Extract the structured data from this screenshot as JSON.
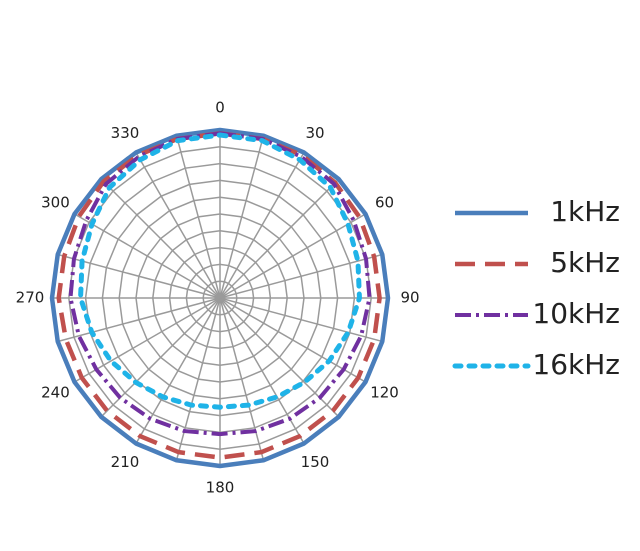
{
  "chart_data": {
    "type": "polar-line",
    "angle_ticks": [
      "0",
      "30",
      "60",
      "90",
      "120",
      "150",
      "180",
      "210",
      "240",
      "270",
      "300",
      "330"
    ],
    "angles_deg": [
      0,
      15,
      30,
      45,
      60,
      75,
      90,
      105,
      120,
      135,
      150,
      165,
      180,
      195,
      210,
      225,
      240,
      255,
      270,
      285,
      300,
      315,
      330,
      345
    ],
    "r_max": 1.0,
    "rings": 10,
    "spokes": 24,
    "grid": true,
    "legend_position": "right",
    "series": [
      {
        "name": "1kHz",
        "color": "#4a7ebb",
        "style": "solid",
        "values": [
          1.0,
          1.0,
          1.0,
          1.0,
          1.0,
          1.0,
          1.0,
          1.0,
          1.0,
          1.0,
          1.0,
          1.0,
          1.0,
          1.0,
          1.0,
          1.0,
          1.0,
          1.0,
          1.0,
          1.0,
          1.0,
          1.0,
          1.0,
          1.0
        ]
      },
      {
        "name": "5kHz",
        "color": "#c0504d",
        "style": "dashed",
        "values": [
          0.98,
          0.98,
          0.98,
          0.97,
          0.96,
          0.95,
          0.95,
          0.95,
          0.95,
          0.95,
          0.95,
          0.95,
          0.95,
          0.95,
          0.95,
          0.95,
          0.95,
          0.95,
          0.96,
          0.96,
          0.97,
          0.98,
          0.98,
          0.98
        ]
      },
      {
        "name": "10kHz",
        "color": "#7030a0",
        "style": "dashdot",
        "values": [
          0.98,
          0.98,
          0.97,
          0.96,
          0.92,
          0.9,
          0.89,
          0.87,
          0.85,
          0.84,
          0.83,
          0.82,
          0.81,
          0.82,
          0.83,
          0.84,
          0.85,
          0.87,
          0.89,
          0.9,
          0.92,
          0.96,
          0.97,
          0.98
        ]
      },
      {
        "name": "16kHz",
        "color": "#1fb3e8",
        "style": "dotted",
        "values": [
          0.97,
          0.97,
          0.95,
          0.93,
          0.88,
          0.85,
          0.83,
          0.79,
          0.75,
          0.71,
          0.68,
          0.66,
          0.65,
          0.66,
          0.68,
          0.71,
          0.75,
          0.79,
          0.83,
          0.85,
          0.88,
          0.93,
          0.95,
          0.97
        ]
      }
    ]
  }
}
